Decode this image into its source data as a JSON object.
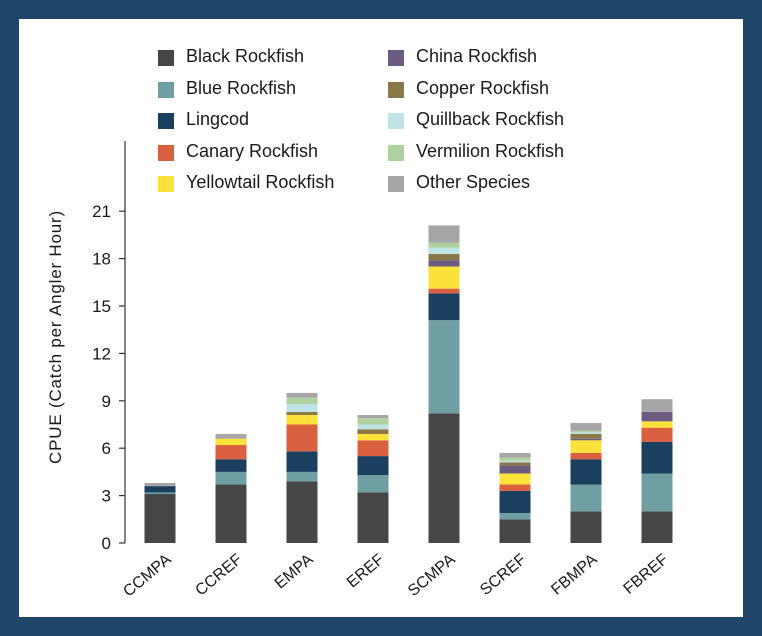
{
  "chart_data": {
    "type": "bar",
    "stacked": true,
    "categories": [
      "CCMPA",
      "CCREF",
      "EMPA",
      "EREF",
      "SCMPA",
      "SCREF",
      "FBMPA",
      "FBREF"
    ],
    "ylabel": "CPUE (Catch per Angler Hour)",
    "ylim": [
      0,
      24
    ],
    "yticks": [
      0,
      3,
      6,
      9,
      12,
      15,
      18,
      21
    ],
    "grid": false,
    "legend_position": "top",
    "series": [
      {
        "name": "Black Rockfish",
        "color": "#464646",
        "values": [
          3.1,
          3.7,
          3.9,
          3.2,
          8.2,
          1.5,
          2.0,
          2.0
        ]
      },
      {
        "name": "Blue Rockfish",
        "color": "#6f9fa3",
        "values": [
          0.1,
          0.8,
          0.6,
          1.1,
          5.9,
          0.4,
          1.7,
          2.4
        ]
      },
      {
        "name": "Lingcod",
        "color": "#1b3f5f",
        "values": [
          0.4,
          0.8,
          1.3,
          1.2,
          1.7,
          1.4,
          1.6,
          2.0
        ]
      },
      {
        "name": "Canary Rockfish",
        "color": "#db6040",
        "values": [
          0.0,
          0.9,
          1.7,
          1.0,
          0.3,
          0.4,
          0.4,
          0.9
        ]
      },
      {
        "name": "Yellowtail Rockfish",
        "color": "#fce13a",
        "values": [
          0.0,
          0.4,
          0.6,
          0.4,
          1.4,
          0.7,
          0.8,
          0.4
        ]
      },
      {
        "name": "China Rockfish",
        "color": "#6c5b80",
        "values": [
          0.0,
          0.0,
          0.0,
          0.0,
          0.4,
          0.5,
          0.1,
          0.6
        ]
      },
      {
        "name": "Copper Rockfish",
        "color": "#8b7848",
        "values": [
          0.0,
          0.0,
          0.2,
          0.3,
          0.4,
          0.2,
          0.3,
          0.0
        ]
      },
      {
        "name": "Quillback Rockfish",
        "color": "#bfe4e5",
        "values": [
          0.0,
          0.0,
          0.5,
          0.3,
          0.4,
          0.1,
          0.1,
          0.0
        ]
      },
      {
        "name": "Vermilion Rockfish",
        "color": "#aed19e",
        "values": [
          0.0,
          0.0,
          0.4,
          0.4,
          0.3,
          0.2,
          0.1,
          0.0
        ]
      },
      {
        "name": "Other Species",
        "color": "#a6a6a8",
        "values": [
          0.2,
          0.3,
          0.3,
          0.2,
          1.1,
          0.3,
          0.5,
          0.8
        ]
      }
    ]
  }
}
